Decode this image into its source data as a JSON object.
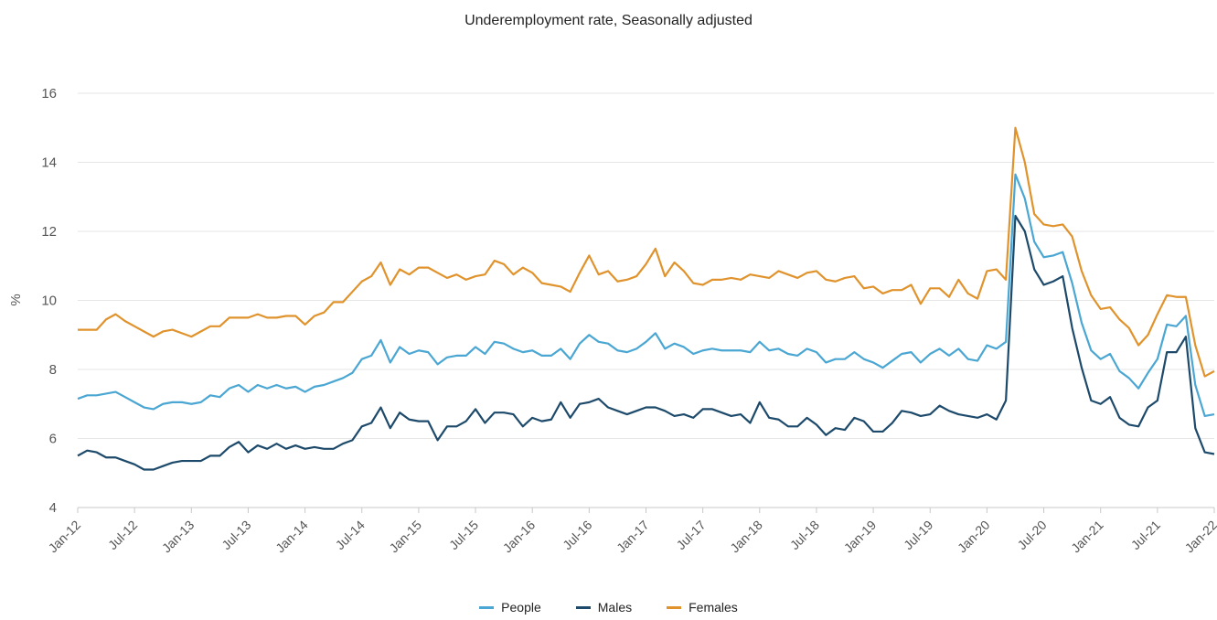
{
  "chart_data": {
    "type": "line",
    "title": "Underemployment rate, Seasonally adjusted",
    "ylabel": "%",
    "xlabel": "",
    "ylim": [
      4,
      16
    ],
    "yticks": [
      4,
      6,
      8,
      10,
      12,
      14,
      16
    ],
    "grid": "horizontal",
    "legend_position": "bottom",
    "x_start": "Jan-12",
    "x_end": "Jan-22",
    "x_tick_labels": [
      "Jan-12",
      "Jul-12",
      "Jan-13",
      "Jul-13",
      "Jan-14",
      "Jul-14",
      "Jan-15",
      "Jul-15",
      "Jan-16",
      "Jul-16",
      "Jan-17",
      "Jul-17",
      "Jan-18",
      "Jul-18",
      "Jan-19",
      "Jul-19",
      "Jan-20",
      "Jul-20",
      "Jan-21",
      "Jul-21",
      "Jan-22"
    ],
    "series": [
      {
        "name": "People",
        "color": "#4aa6d2",
        "values": [
          7.15,
          7.25,
          7.25,
          7.3,
          7.35,
          7.2,
          7.05,
          6.9,
          6.85,
          7.0,
          7.05,
          7.05,
          7.0,
          7.05,
          7.25,
          7.2,
          7.45,
          7.55,
          7.35,
          7.55,
          7.45,
          7.55,
          7.45,
          7.5,
          7.35,
          7.5,
          7.55,
          7.65,
          7.75,
          7.9,
          8.3,
          8.4,
          8.85,
          8.2,
          8.65,
          8.45,
          8.55,
          8.5,
          8.15,
          8.35,
          8.4,
          8.4,
          8.65,
          8.45,
          8.8,
          8.75,
          8.6,
          8.5,
          8.55,
          8.4,
          8.4,
          8.6,
          8.3,
          8.75,
          9.0,
          8.8,
          8.75,
          8.55,
          8.5,
          8.6,
          8.8,
          9.05,
          8.6,
          8.75,
          8.65,
          8.45,
          8.55,
          8.6,
          8.55,
          8.55,
          8.55,
          8.5,
          8.8,
          8.55,
          8.6,
          8.45,
          8.4,
          8.6,
          8.5,
          8.2,
          8.3,
          8.3,
          8.5,
          8.3,
          8.2,
          8.05,
          8.25,
          8.45,
          8.5,
          8.2,
          8.45,
          8.6,
          8.4,
          8.6,
          8.3,
          8.25,
          8.7,
          8.6,
          8.8,
          13.65,
          12.95,
          11.7,
          11.25,
          11.3,
          11.4,
          10.5,
          9.35,
          8.55,
          8.3,
          8.45,
          7.95,
          7.75,
          7.45,
          7.9,
          8.3,
          9.3,
          9.25,
          9.55,
          7.55,
          6.65,
          6.7
        ]
      },
      {
        "name": "Males",
        "color": "#1d4a6b",
        "values": [
          5.5,
          5.65,
          5.6,
          5.45,
          5.45,
          5.35,
          5.25,
          5.1,
          5.1,
          5.2,
          5.3,
          5.35,
          5.35,
          5.35,
          5.5,
          5.5,
          5.75,
          5.9,
          5.6,
          5.8,
          5.7,
          5.85,
          5.7,
          5.8,
          5.7,
          5.75,
          5.7,
          5.7,
          5.85,
          5.95,
          6.35,
          6.45,
          6.9,
          6.3,
          6.75,
          6.55,
          6.5,
          6.5,
          5.95,
          6.35,
          6.35,
          6.5,
          6.85,
          6.45,
          6.75,
          6.75,
          6.7,
          6.35,
          6.6,
          6.5,
          6.55,
          7.05,
          6.6,
          7.0,
          7.05,
          7.15,
          6.9,
          6.8,
          6.7,
          6.8,
          6.9,
          6.9,
          6.8,
          6.65,
          6.7,
          6.6,
          6.85,
          6.85,
          6.75,
          6.65,
          6.7,
          6.45,
          7.05,
          6.6,
          6.55,
          6.35,
          6.35,
          6.6,
          6.4,
          6.1,
          6.3,
          6.25,
          6.6,
          6.5,
          6.2,
          6.2,
          6.45,
          6.8,
          6.75,
          6.65,
          6.7,
          6.95,
          6.8,
          6.7,
          6.65,
          6.6,
          6.7,
          6.55,
          7.1,
          12.45,
          12.0,
          10.9,
          10.45,
          10.55,
          10.7,
          9.2,
          8.05,
          7.1,
          7.0,
          7.2,
          6.6,
          6.4,
          6.35,
          6.9,
          7.1,
          8.5,
          8.5,
          8.95,
          6.3,
          5.6,
          5.55
        ]
      },
      {
        "name": "Females",
        "color": "#e0932c",
        "values": [
          9.15,
          9.15,
          9.15,
          9.45,
          9.6,
          9.4,
          9.25,
          9.1,
          8.95,
          9.1,
          9.15,
          9.05,
          8.95,
          9.1,
          9.25,
          9.25,
          9.5,
          9.5,
          9.5,
          9.6,
          9.5,
          9.5,
          9.55,
          9.55,
          9.3,
          9.55,
          9.65,
          9.95,
          9.95,
          10.25,
          10.55,
          10.7,
          11.1,
          10.45,
          10.9,
          10.75,
          10.95,
          10.95,
          10.8,
          10.65,
          10.75,
          10.6,
          10.7,
          10.75,
          11.15,
          11.05,
          10.75,
          10.95,
          10.8,
          10.5,
          10.45,
          10.4,
          10.25,
          10.8,
          11.3,
          10.75,
          10.85,
          10.55,
          10.6,
          10.7,
          11.05,
          11.5,
          10.7,
          11.1,
          10.85,
          10.5,
          10.45,
          10.6,
          10.6,
          10.65,
          10.6,
          10.75,
          10.7,
          10.65,
          10.85,
          10.75,
          10.65,
          10.8,
          10.85,
          10.6,
          10.55,
          10.65,
          10.7,
          10.35,
          10.4,
          10.2,
          10.3,
          10.3,
          10.45,
          9.9,
          10.35,
          10.35,
          10.1,
          10.6,
          10.2,
          10.05,
          10.85,
          10.9,
          10.6,
          15.0,
          14.0,
          12.5,
          12.2,
          12.15,
          12.2,
          11.85,
          10.85,
          10.15,
          9.75,
          9.8,
          9.45,
          9.2,
          8.7,
          9.0,
          9.6,
          10.15,
          10.1,
          10.1,
          8.7,
          7.8,
          7.95
        ]
      }
    ]
  }
}
